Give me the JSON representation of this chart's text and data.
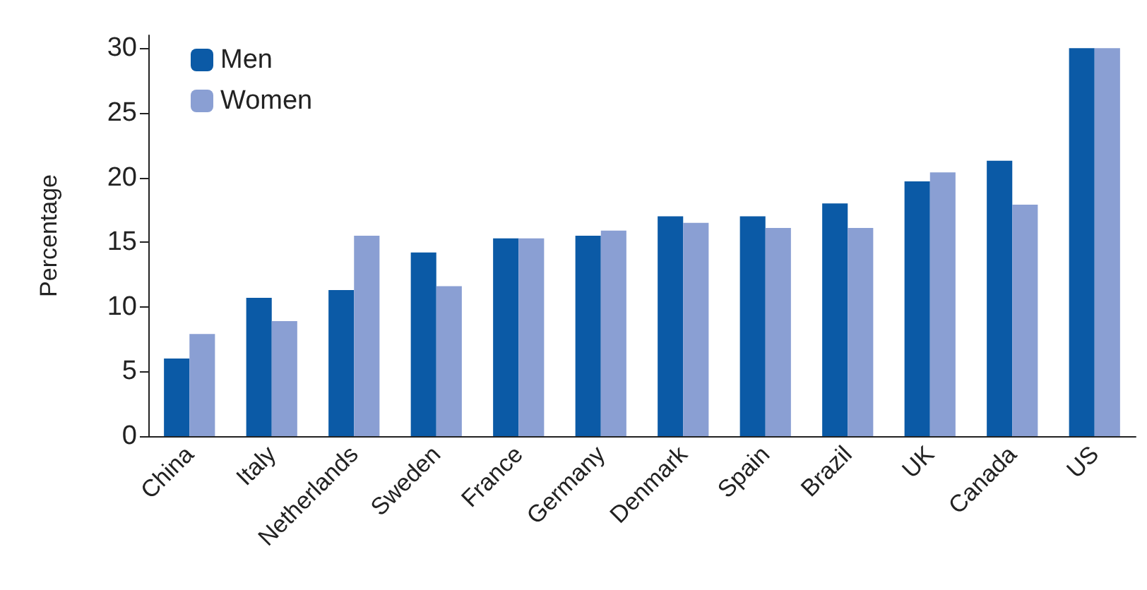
{
  "chart_data": {
    "type": "bar",
    "ylabel": "Percentage",
    "categories": [
      "China",
      "Italy",
      "Netherlands",
      "Sweden",
      "France",
      "Germany",
      "Denmark",
      "Spain",
      "Brazil",
      "UK",
      "Canada",
      "US"
    ],
    "series": [
      {
        "name": "Men",
        "color": "#0b5aa6",
        "values": [
          6.0,
          10.7,
          11.3,
          14.2,
          15.3,
          15.5,
          17.0,
          17.0,
          18.0,
          19.7,
          21.3,
          30.0
        ]
      },
      {
        "name": "Women",
        "color": "#8a9fd3",
        "values": [
          7.9,
          8.9,
          15.5,
          11.6,
          15.3,
          15.9,
          16.5,
          16.1,
          16.1,
          20.4,
          17.9,
          30.0
        ]
      }
    ],
    "ylim": [
      0,
      31
    ],
    "yticks": [
      0,
      5,
      10,
      15,
      20,
      25,
      30
    ],
    "grid": false,
    "legend": "top left"
  }
}
